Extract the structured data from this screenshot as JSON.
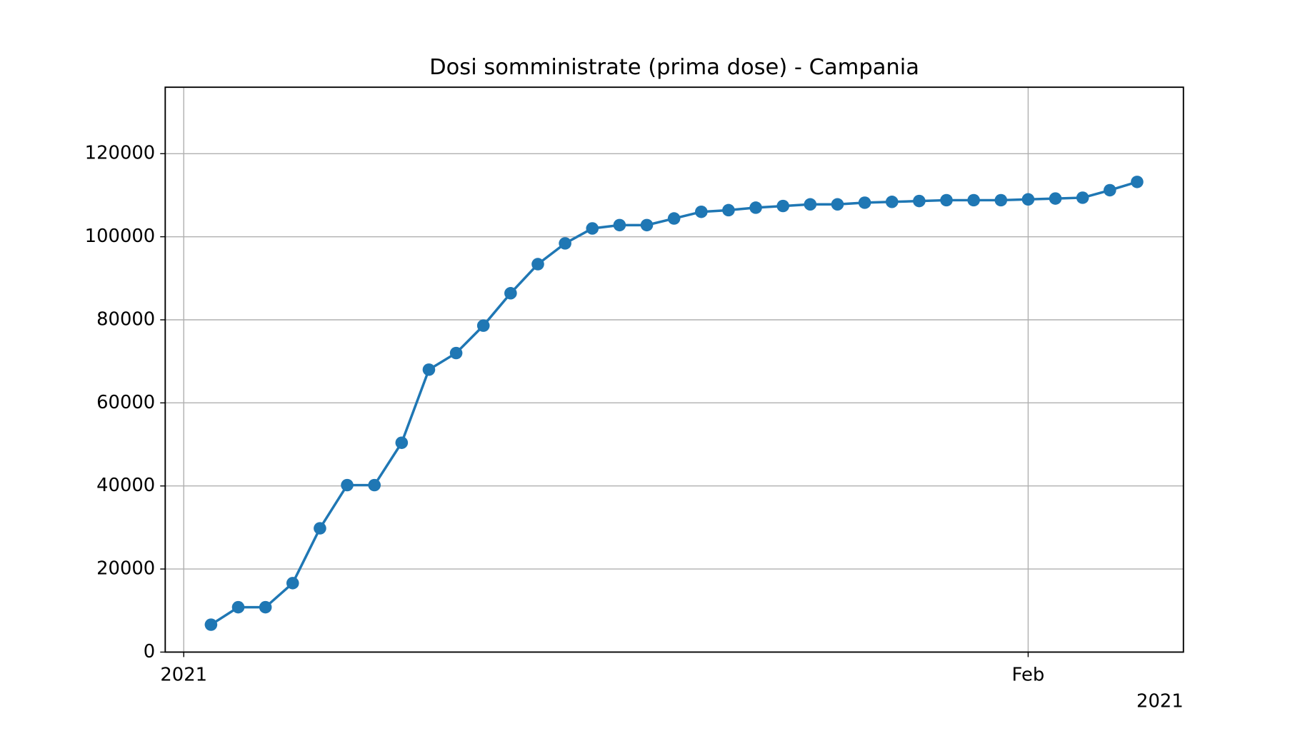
{
  "chart_data": {
    "type": "line",
    "title": "Dosi somministrate (prima dose) - Campania",
    "x": [
      1,
      2,
      3,
      4,
      5,
      6,
      7,
      8,
      9,
      10,
      11,
      12,
      13,
      14,
      15,
      16,
      17,
      18,
      19,
      20,
      21,
      22,
      23,
      24,
      25,
      26,
      27,
      28,
      29,
      30,
      31,
      32,
      33,
      34,
      35
    ],
    "series": [
      {
        "name": "Campania",
        "color": "#1f77b4",
        "values": [
          6600,
          10800,
          10800,
          16600,
          29800,
          40200,
          40200,
          50400,
          68000,
          72000,
          78600,
          86400,
          93400,
          98400,
          102000,
          102800,
          102800,
          104400,
          106000,
          106400,
          107000,
          107400,
          107800,
          107800,
          108200,
          108400,
          108600,
          108800,
          108800,
          108800,
          109000,
          109200,
          109400,
          111200,
          113200
        ]
      }
    ],
    "xlim": [
      -0.68,
      36.7
    ],
    "xticks": [
      {
        "value": 0,
        "label": "2021"
      },
      {
        "value": 31,
        "label": "Feb"
      }
    ],
    "x_offset_label": "2021",
    "ylim": [
      0,
      136000
    ],
    "yticks": [
      0,
      20000,
      40000,
      60000,
      80000,
      100000,
      120000
    ],
    "grid": true
  }
}
